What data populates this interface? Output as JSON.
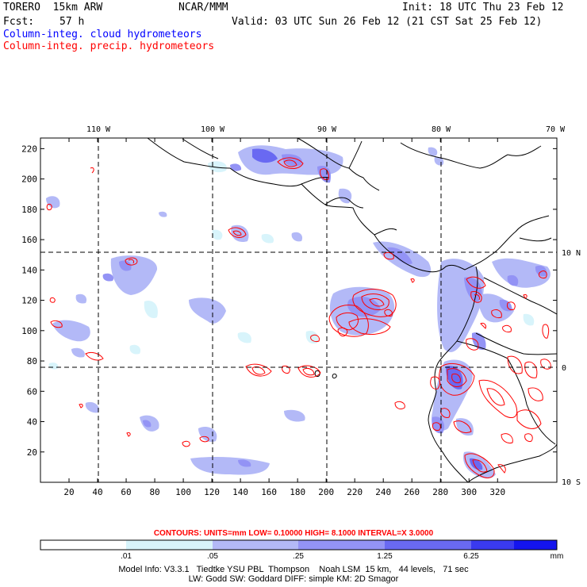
{
  "header": {
    "model": "TORERO  15km ARW",
    "org": "NCAR/MMM",
    "init": "Init: 18 UTC Thu 23 Feb 12",
    "fcst_label": "Fcst:",
    "fcst_value": "57 h",
    "valid": "Valid: 03 UTC Sun 26 Feb 12 (21 CST Sat 25 Feb 12)"
  },
  "legend": {
    "cloud": "Column-integ. cloud hydrometeors",
    "precip": "Column-integ. precip. hydrometeors",
    "cloud_color": "#4040ff",
    "precip_color": "#ff0000"
  },
  "map": {
    "lon_labels": [
      "110 W",
      "100 W",
      "90 W",
      "80 W",
      "70 W"
    ],
    "lat_labels": [
      "10 N",
      "0",
      "10 S"
    ],
    "x_ticks": [
      "20",
      "40",
      "60",
      "80",
      "100",
      "120",
      "140",
      "160",
      "180",
      "200",
      "220",
      "240",
      "260",
      "280",
      "300",
      "320"
    ],
    "y_ticks": [
      "220",
      "200",
      "180",
      "160",
      "140",
      "120",
      "100",
      "80",
      "60",
      "40",
      "20"
    ]
  },
  "contours": {
    "text": "CONTOURS:  UNITS=mm  LOW= 0.10000     HIGH=  8.1000     INTERVAL=X  3.0000"
  },
  "colorbar": {
    "labels": [
      ".01",
      ".05",
      ".25",
      "1.25",
      "6.25"
    ],
    "unit": "mm",
    "colors": [
      "#ffffff",
      "#d8f4fb",
      "#b3b9f7",
      "#9393f5",
      "#6969f2",
      "#3a3aef",
      "#1414ee"
    ]
  },
  "model_info": {
    "line1": "Model Info: V3.3.1   Tiedtke YSU PBL  Thompson    Noah LSM  15 km,   44 levels,   71 sec",
    "line2": "LW: Godd SW: Goddard DIFF: simple KM: 2D Smagor"
  }
}
